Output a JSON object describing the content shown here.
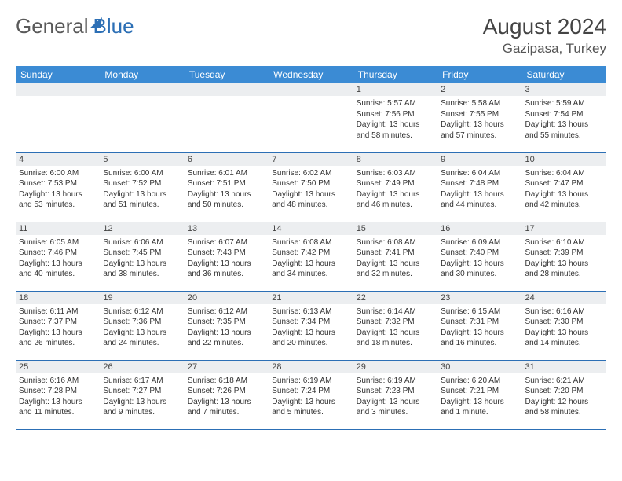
{
  "brand": {
    "general": "General",
    "blue": "Blue"
  },
  "header": {
    "monthYear": "August 2024",
    "location": "Gazipasa, Turkey"
  },
  "colors": {
    "headerBar": "#3b8bd4",
    "rowDivider": "#2c6fb5",
    "dayStrip": "#eceef0",
    "text": "#333333",
    "brandBlue": "#2c6fb5",
    "brandGray": "#5a5a5a"
  },
  "weekdays": [
    "Sunday",
    "Monday",
    "Tuesday",
    "Wednesday",
    "Thursday",
    "Friday",
    "Saturday"
  ],
  "weeks": [
    [
      {
        "day": "",
        "sunrise": "",
        "sunset": "",
        "daylight": ""
      },
      {
        "day": "",
        "sunrise": "",
        "sunset": "",
        "daylight": ""
      },
      {
        "day": "",
        "sunrise": "",
        "sunset": "",
        "daylight": ""
      },
      {
        "day": "",
        "sunrise": "",
        "sunset": "",
        "daylight": ""
      },
      {
        "day": "1",
        "sunrise": "Sunrise: 5:57 AM",
        "sunset": "Sunset: 7:56 PM",
        "daylight": "Daylight: 13 hours and 58 minutes."
      },
      {
        "day": "2",
        "sunrise": "Sunrise: 5:58 AM",
        "sunset": "Sunset: 7:55 PM",
        "daylight": "Daylight: 13 hours and 57 minutes."
      },
      {
        "day": "3",
        "sunrise": "Sunrise: 5:59 AM",
        "sunset": "Sunset: 7:54 PM",
        "daylight": "Daylight: 13 hours and 55 minutes."
      }
    ],
    [
      {
        "day": "4",
        "sunrise": "Sunrise: 6:00 AM",
        "sunset": "Sunset: 7:53 PM",
        "daylight": "Daylight: 13 hours and 53 minutes."
      },
      {
        "day": "5",
        "sunrise": "Sunrise: 6:00 AM",
        "sunset": "Sunset: 7:52 PM",
        "daylight": "Daylight: 13 hours and 51 minutes."
      },
      {
        "day": "6",
        "sunrise": "Sunrise: 6:01 AM",
        "sunset": "Sunset: 7:51 PM",
        "daylight": "Daylight: 13 hours and 50 minutes."
      },
      {
        "day": "7",
        "sunrise": "Sunrise: 6:02 AM",
        "sunset": "Sunset: 7:50 PM",
        "daylight": "Daylight: 13 hours and 48 minutes."
      },
      {
        "day": "8",
        "sunrise": "Sunrise: 6:03 AM",
        "sunset": "Sunset: 7:49 PM",
        "daylight": "Daylight: 13 hours and 46 minutes."
      },
      {
        "day": "9",
        "sunrise": "Sunrise: 6:04 AM",
        "sunset": "Sunset: 7:48 PM",
        "daylight": "Daylight: 13 hours and 44 minutes."
      },
      {
        "day": "10",
        "sunrise": "Sunrise: 6:04 AM",
        "sunset": "Sunset: 7:47 PM",
        "daylight": "Daylight: 13 hours and 42 minutes."
      }
    ],
    [
      {
        "day": "11",
        "sunrise": "Sunrise: 6:05 AM",
        "sunset": "Sunset: 7:46 PM",
        "daylight": "Daylight: 13 hours and 40 minutes."
      },
      {
        "day": "12",
        "sunrise": "Sunrise: 6:06 AM",
        "sunset": "Sunset: 7:45 PM",
        "daylight": "Daylight: 13 hours and 38 minutes."
      },
      {
        "day": "13",
        "sunrise": "Sunrise: 6:07 AM",
        "sunset": "Sunset: 7:43 PM",
        "daylight": "Daylight: 13 hours and 36 minutes."
      },
      {
        "day": "14",
        "sunrise": "Sunrise: 6:08 AM",
        "sunset": "Sunset: 7:42 PM",
        "daylight": "Daylight: 13 hours and 34 minutes."
      },
      {
        "day": "15",
        "sunrise": "Sunrise: 6:08 AM",
        "sunset": "Sunset: 7:41 PM",
        "daylight": "Daylight: 13 hours and 32 minutes."
      },
      {
        "day": "16",
        "sunrise": "Sunrise: 6:09 AM",
        "sunset": "Sunset: 7:40 PM",
        "daylight": "Daylight: 13 hours and 30 minutes."
      },
      {
        "day": "17",
        "sunrise": "Sunrise: 6:10 AM",
        "sunset": "Sunset: 7:39 PM",
        "daylight": "Daylight: 13 hours and 28 minutes."
      }
    ],
    [
      {
        "day": "18",
        "sunrise": "Sunrise: 6:11 AM",
        "sunset": "Sunset: 7:37 PM",
        "daylight": "Daylight: 13 hours and 26 minutes."
      },
      {
        "day": "19",
        "sunrise": "Sunrise: 6:12 AM",
        "sunset": "Sunset: 7:36 PM",
        "daylight": "Daylight: 13 hours and 24 minutes."
      },
      {
        "day": "20",
        "sunrise": "Sunrise: 6:12 AM",
        "sunset": "Sunset: 7:35 PM",
        "daylight": "Daylight: 13 hours and 22 minutes."
      },
      {
        "day": "21",
        "sunrise": "Sunrise: 6:13 AM",
        "sunset": "Sunset: 7:34 PM",
        "daylight": "Daylight: 13 hours and 20 minutes."
      },
      {
        "day": "22",
        "sunrise": "Sunrise: 6:14 AM",
        "sunset": "Sunset: 7:32 PM",
        "daylight": "Daylight: 13 hours and 18 minutes."
      },
      {
        "day": "23",
        "sunrise": "Sunrise: 6:15 AM",
        "sunset": "Sunset: 7:31 PM",
        "daylight": "Daylight: 13 hours and 16 minutes."
      },
      {
        "day": "24",
        "sunrise": "Sunrise: 6:16 AM",
        "sunset": "Sunset: 7:30 PM",
        "daylight": "Daylight: 13 hours and 14 minutes."
      }
    ],
    [
      {
        "day": "25",
        "sunrise": "Sunrise: 6:16 AM",
        "sunset": "Sunset: 7:28 PM",
        "daylight": "Daylight: 13 hours and 11 minutes."
      },
      {
        "day": "26",
        "sunrise": "Sunrise: 6:17 AM",
        "sunset": "Sunset: 7:27 PM",
        "daylight": "Daylight: 13 hours and 9 minutes."
      },
      {
        "day": "27",
        "sunrise": "Sunrise: 6:18 AM",
        "sunset": "Sunset: 7:26 PM",
        "daylight": "Daylight: 13 hours and 7 minutes."
      },
      {
        "day": "28",
        "sunrise": "Sunrise: 6:19 AM",
        "sunset": "Sunset: 7:24 PM",
        "daylight": "Daylight: 13 hours and 5 minutes."
      },
      {
        "day": "29",
        "sunrise": "Sunrise: 6:19 AM",
        "sunset": "Sunset: 7:23 PM",
        "daylight": "Daylight: 13 hours and 3 minutes."
      },
      {
        "day": "30",
        "sunrise": "Sunrise: 6:20 AM",
        "sunset": "Sunset: 7:21 PM",
        "daylight": "Daylight: 13 hours and 1 minute."
      },
      {
        "day": "31",
        "sunrise": "Sunrise: 6:21 AM",
        "sunset": "Sunset: 7:20 PM",
        "daylight": "Daylight: 12 hours and 58 minutes."
      }
    ]
  ]
}
